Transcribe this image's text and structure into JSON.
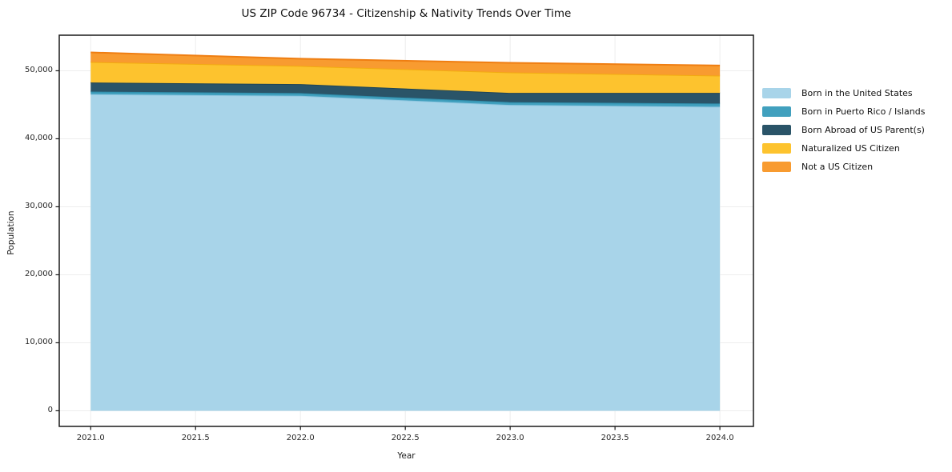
{
  "chart_data": {
    "type": "area",
    "stacked": true,
    "title": "US ZIP Code 96734 - Citizenship & Nativity Trends Over Time",
    "xlabel": "Year",
    "ylabel": "Population",
    "x": [
      2021,
      2022,
      2023,
      2024
    ],
    "series": [
      {
        "name": "Born in the United States",
        "values": [
          46550,
          46320,
          44980,
          44710
        ],
        "fill": "#A8D4E9",
        "edge": "#8FC6E0"
      },
      {
        "name": "Born in Puerto Rico / Islands",
        "values": [
          390,
          390,
          400,
          470
        ],
        "fill": "#41A0BE",
        "edge": "#2F8FAD"
      },
      {
        "name": "Born Abroad of US Parent(s)",
        "values": [
          1330,
          1330,
          1360,
          1560
        ],
        "fill": "#2A5468",
        "edge": "#1F4455"
      },
      {
        "name": "Naturalized US Citizen",
        "values": [
          3020,
          2670,
          3020,
          2550
        ],
        "fill": "#FDC32E",
        "edge": "#F2AB10"
      },
      {
        "name": "Not a US Citizen",
        "values": [
          1410,
          1060,
          1410,
          1490
        ],
        "fill": "#F89B30",
        "edge": "#EF7E12"
      }
    ],
    "xlim": [
      2020.85,
      2024.16
    ],
    "ylim": [
      -2300,
      55230
    ],
    "x_tick_values": [
      2021.0,
      2021.5,
      2022.0,
      2022.5,
      2023.0,
      2023.5,
      2024.0
    ],
    "x_tick_labels": [
      "2021.0",
      "2021.5",
      "2022.0",
      "2022.5",
      "2023.0",
      "2023.5",
      "2024.0"
    ],
    "y_tick_values": [
      0,
      10000,
      20000,
      30000,
      40000,
      50000
    ],
    "y_tick_labels": [
      "0",
      "10,000",
      "20,000",
      "30,000",
      "40,000",
      "50,000"
    ],
    "grid": true,
    "grid_color": "#ededed",
    "spine_color": "#1a1a1a",
    "legend_position": "right"
  }
}
